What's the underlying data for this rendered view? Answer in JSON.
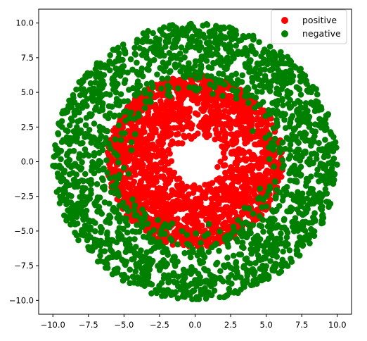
{
  "chart_data": {
    "type": "scatter",
    "title": "",
    "xlabel": "",
    "ylabel": "",
    "xlim": [
      -11,
      11
    ],
    "ylim": [
      -11,
      11
    ],
    "xticks": [
      -10,
      -7.5,
      -5,
      -2.5,
      0,
      2.5,
      5,
      7.5,
      10
    ],
    "yticks": [
      -10,
      -7.5,
      -5,
      -2.5,
      0,
      2.5,
      5,
      7.5,
      10
    ],
    "xtick_labels": [
      "−10.0",
      "−7.5",
      "−5.0",
      "−2.5",
      "0.0",
      "2.5",
      "5.0",
      "7.5",
      "10.0"
    ],
    "ytick_labels": [
      "−10.0",
      "−7.5",
      "−5.0",
      "−2.5",
      "0.0",
      "2.5",
      "5.0",
      "7.5",
      "10.0"
    ],
    "grid": false,
    "legend_position": "top-right",
    "series": [
      {
        "name": "positive",
        "color": "#ff0000",
        "marker": "circle",
        "count": 2000,
        "distribution": "annulus, radius from 1.5 to 6.2, centered at (0, 0)"
      },
      {
        "name": "negative",
        "color": "#008000",
        "marker": "circle",
        "count": 2000,
        "distribution": "annulus, radius from 4.5 to 10.0, centered at (0, 0)"
      }
    ]
  }
}
